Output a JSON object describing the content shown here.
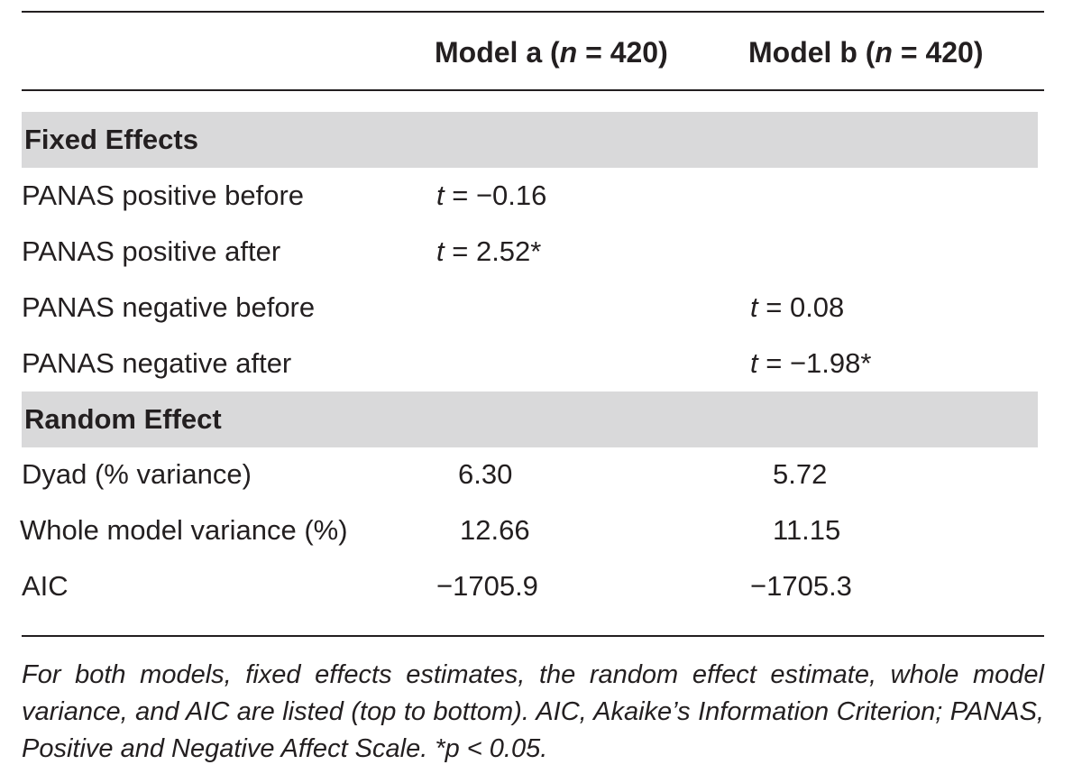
{
  "table": {
    "header": {
      "model_a_prefix": "Model a (",
      "model_a_n": "n",
      "model_a_suffix": " = 420)",
      "model_b_prefix": "Model b (",
      "model_b_n": "n",
      "model_b_suffix": " = 420)"
    },
    "sections": {
      "fixed_effects": "Fixed Effects",
      "random_effect": "Random Effect"
    },
    "rows": [
      {
        "label": "PANAS positive before",
        "a_stat": "t",
        "a_value": " = −0.16",
        "b_stat": "",
        "b_value": ""
      },
      {
        "label": "PANAS positive after",
        "a_stat": "t",
        "a_value": " = 2.52*",
        "b_stat": "",
        "b_value": ""
      },
      {
        "label": "PANAS negative before",
        "a_stat": "",
        "a_value": "",
        "b_stat": "t",
        "b_value": " = 0.08"
      },
      {
        "label": "PANAS negative after",
        "a_stat": "",
        "a_value": "",
        "b_stat": "t",
        "b_value": " = −1.98*"
      },
      {
        "label": "Dyad (% variance)",
        "a": "6.30",
        "b": "5.72"
      },
      {
        "label": "Whole model variance (%)",
        "a": "12.66",
        "b": "11.15"
      },
      {
        "label": "AIC",
        "a": "−1705.9",
        "b": "−1705.3"
      }
    ]
  },
  "footnote": "For both models, fixed effects estimates, the random effect estimate, whole model variance, and AIC are listed (top to bottom). AIC, Akaike’s Information Criterion; PANAS, Positive and Negative Affect Scale. *p < 0.05."
}
